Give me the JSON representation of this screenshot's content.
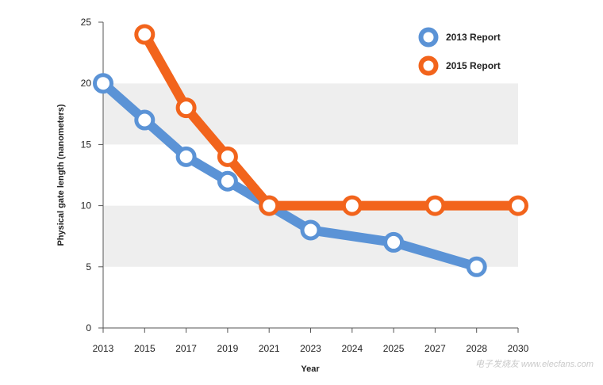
{
  "chart_data": {
    "type": "line",
    "title": "",
    "xlabel": "Year",
    "ylabel": "Physical gate length (nanometers)",
    "categories": [
      "2013",
      "2015",
      "2017",
      "2019",
      "2021",
      "2023",
      "2024",
      "2025",
      "2027",
      "2028",
      "2030"
    ],
    "ylim": [
      0,
      25
    ],
    "yticks": [
      0,
      5,
      10,
      15,
      20,
      25
    ],
    "grid": "alternating horizontal bands",
    "legend_position": "top-right",
    "series": [
      {
        "name": "2013 Report",
        "color": "#5b93d6",
        "points": [
          {
            "x": "2013",
            "y": 20
          },
          {
            "x": "2015",
            "y": 17
          },
          {
            "x": "2017",
            "y": 14
          },
          {
            "x": "2019",
            "y": 12
          },
          {
            "x": "2021",
            "y": 10
          },
          {
            "x": "2023",
            "y": 8
          },
          {
            "x": "2025",
            "y": 7
          },
          {
            "x": "2028",
            "y": 5
          }
        ]
      },
      {
        "name": "2015 Report",
        "color": "#f2641c",
        "points": [
          {
            "x": "2015",
            "y": 24
          },
          {
            "x": "2017",
            "y": 18
          },
          {
            "x": "2019",
            "y": 14
          },
          {
            "x": "2021",
            "y": 10
          },
          {
            "x": "2024",
            "y": 10
          },
          {
            "x": "2027",
            "y": 10
          },
          {
            "x": "2030",
            "y": 10
          }
        ]
      }
    ]
  },
  "watermark": {
    "text": "电子发烧友 www.elecfans.com"
  }
}
